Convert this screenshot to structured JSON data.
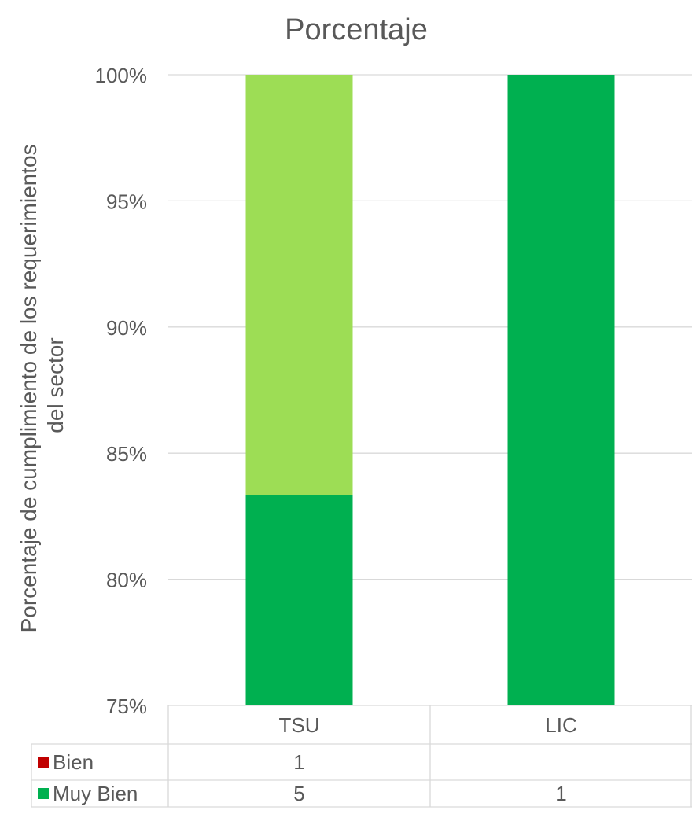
{
  "chart_data": {
    "type": "bar",
    "stacked": true,
    "title": "Porcentaje",
    "ylabel": "Porcentaje de cumplimiento de los requerimientos del sector",
    "ylabel_lines": [
      "Porcentaje de cumplimiento de los requerimientos",
      "del sector"
    ],
    "xlabel": "",
    "categories": [
      "TSU",
      "LIC"
    ],
    "ylim": [
      75,
      100
    ],
    "yticks": [
      75,
      80,
      85,
      90,
      95,
      100
    ],
    "ytick_labels": [
      "75%",
      "80%",
      "85%",
      "90%",
      "95%",
      "100%"
    ],
    "grid": true,
    "legend_position": "data-table",
    "bar_series": [
      {
        "color": "#00b050",
        "values": [
          83.33,
          100
        ]
      },
      {
        "color": "#9ddd55",
        "values": [
          16.67,
          0
        ]
      }
    ],
    "data_table": {
      "rows": [
        {
          "name": "Bien",
          "color": "#c00000",
          "values": [
            "1",
            ""
          ]
        },
        {
          "name": "Muy Bien",
          "color": "#00b050",
          "values": [
            "5",
            "1"
          ]
        }
      ]
    }
  }
}
